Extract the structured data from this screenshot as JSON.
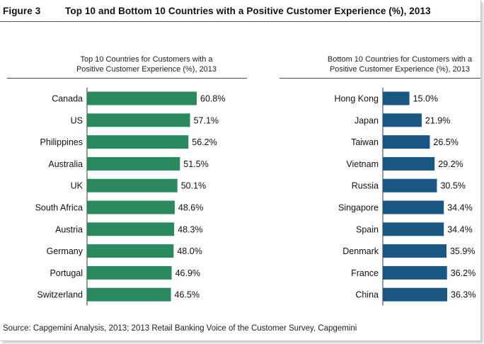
{
  "figure_label": "Figure 3",
  "figure_title": "Top 10 and Bottom 10 Countries with a Positive Customer Experience (%), 2013",
  "source": "Source: Capgemini Analysis, 2013; 2013 Retail Banking Voice of the Customer Survey, Capgemini",
  "colors": {
    "left_bar": "#2a8a5e",
    "right_bar": "#1a5884"
  },
  "chart_data": [
    {
      "type": "bar",
      "orientation": "horizontal",
      "title_lines": [
        "Top 10 Countries for Customers with a",
        "Positive Customer Experience (%), 2013"
      ],
      "categories": [
        "Canada",
        "US",
        "Philippines",
        "Australia",
        "UK",
        "South Africa",
        "Austria",
        "Germany",
        "Portugal",
        "Switzerland"
      ],
      "values": [
        60.8,
        57.1,
        56.2,
        51.5,
        50.1,
        48.6,
        48.3,
        48.0,
        46.9,
        46.5
      ],
      "value_labels": [
        "60.8%",
        "57.1%",
        "56.2%",
        "51.5%",
        "50.1%",
        "48.6%",
        "48.3%",
        "48.0%",
        "46.9%",
        "46.5%"
      ],
      "xlim": [
        0,
        60.8
      ],
      "unit": "%"
    },
    {
      "type": "bar",
      "orientation": "horizontal",
      "title_lines": [
        "Bottom 10 Countries for Customers with a",
        "Positive Customer Experience (%), 2013"
      ],
      "categories": [
        "Hong Kong",
        "Japan",
        "Taiwan",
        "Vietnam",
        "Russia",
        "Singapore",
        "Spain",
        "Denmark",
        "France",
        "China"
      ],
      "values": [
        15.0,
        21.9,
        26.5,
        29.2,
        30.5,
        34.4,
        34.4,
        35.9,
        36.2,
        36.3
      ],
      "value_labels": [
        "15.0%",
        "21.9%",
        "26.5%",
        "29.2%",
        "30.5%",
        "34.4%",
        "34.4%",
        "35.9%",
        "36.2%",
        "36.3%"
      ],
      "xlim": [
        0,
        36.3
      ],
      "unit": "%"
    }
  ]
}
